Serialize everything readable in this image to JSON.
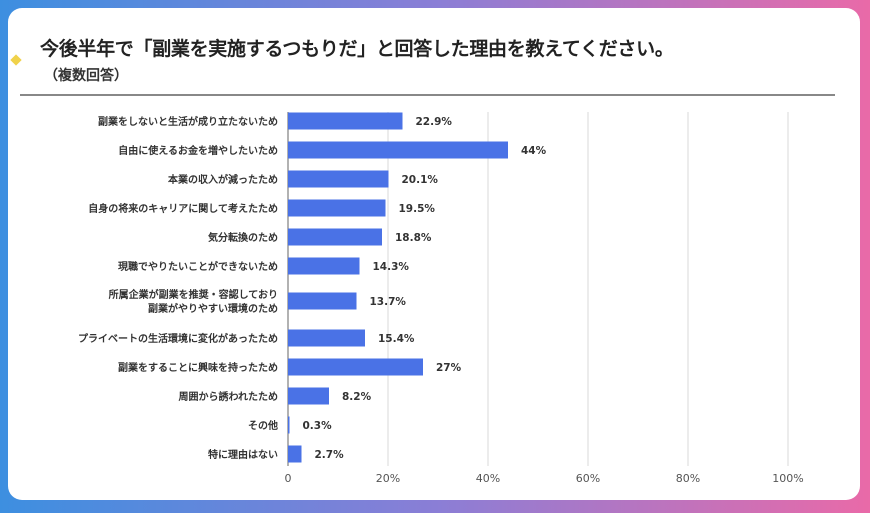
{
  "title": "今後半年で「副業を実施するつもりだ」と回答した理由を教えてください。",
  "subtitle": "（複数回答）",
  "colors": {
    "bar": "#4a72e6",
    "grid": "#d8d8d8",
    "accent_diamond": "#f0d24a"
  },
  "chart_data": {
    "type": "bar",
    "orientation": "horizontal",
    "title": "今後半年で「副業を実施するつもりだ」と回答した理由を教えてください。",
    "subtitle": "（複数回答）",
    "categories": [
      [
        "副業をしないと生活が成り立たないため"
      ],
      [
        "自由に使えるお金を増やしたいため"
      ],
      [
        "本業の収入が減ったため"
      ],
      [
        "自身の将来のキャリアに関して考えたため"
      ],
      [
        "気分転換のため"
      ],
      [
        "現職でやりたいことができないため"
      ],
      [
        "所属企業が副業を推奨・容認しており",
        "副業がやりやすい環境のため"
      ],
      [
        "プライベートの生活環境に変化があったため"
      ],
      [
        "副業をすることに興味を持ったため"
      ],
      [
        "周囲から誘われたため"
      ],
      [
        "その他"
      ],
      [
        "特に理由はない"
      ]
    ],
    "values": [
      22.9,
      44,
      20.1,
      19.5,
      18.8,
      14.3,
      13.7,
      15.4,
      27,
      8.2,
      0.3,
      2.7
    ],
    "value_labels": [
      "22.9%",
      "44%",
      "20.1%",
      "19.5%",
      "18.8%",
      "14.3%",
      "13.7%",
      "15.4%",
      "27%",
      "8.2%",
      "0.3%",
      "2.7%"
    ],
    "xlim": [
      0,
      100
    ],
    "x_ticks": [
      "0",
      "20%",
      "40%",
      "60%",
      "80%",
      "100%"
    ],
    "grid": true,
    "legend": "none"
  }
}
